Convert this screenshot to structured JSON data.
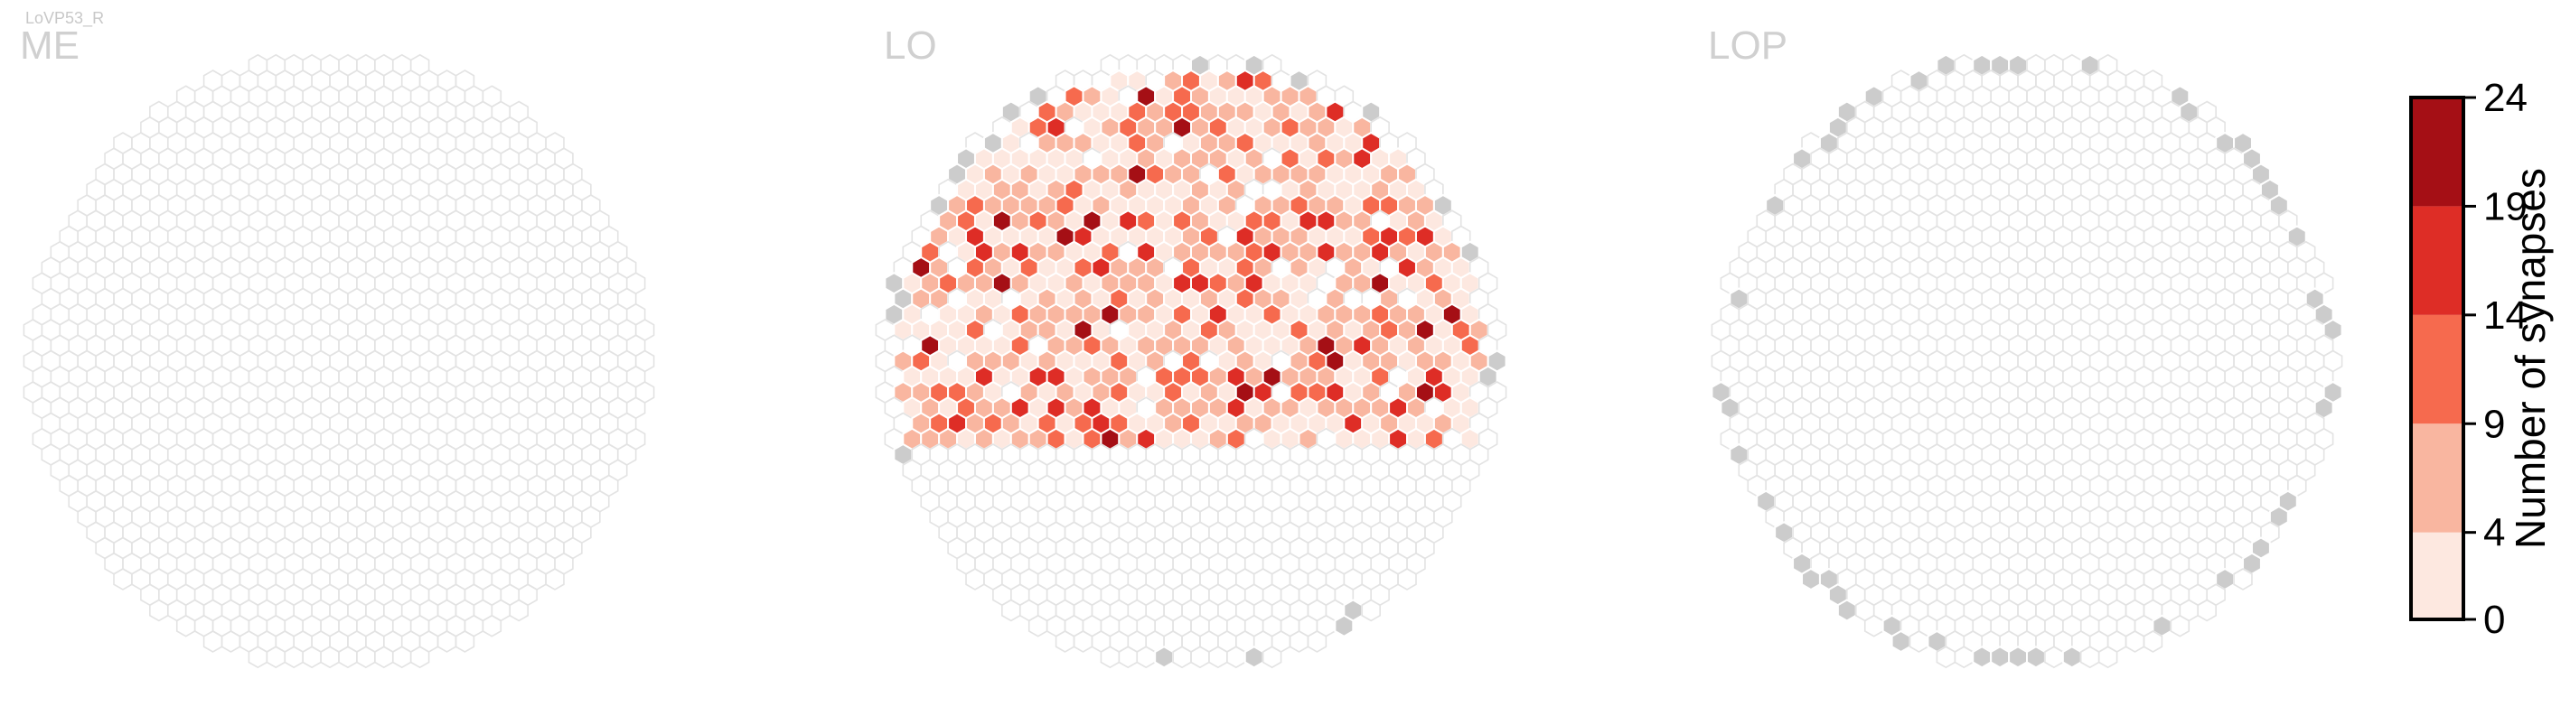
{
  "figure_title": "LoVP53_R",
  "chart_data": {
    "type": "heatmap",
    "layout": "hexagonal columns",
    "panels": [
      {
        "name": "ME",
        "cells_with_synapses": 0
      },
      {
        "name": "LO"
      },
      {
        "name": "LOP",
        "cells_with_synapses": 0
      }
    ],
    "colorbar": {
      "label": "Number of synapses",
      "ticks": [
        0,
        4,
        9,
        14,
        19,
        24
      ],
      "range": [
        0,
        24
      ],
      "bins": [
        {
          "range": [
            0,
            4
          ],
          "color": "#fde8e0"
        },
        {
          "range": [
            4,
            9
          ],
          "color": "#f9b6a0"
        },
        {
          "range": [
            9,
            14
          ],
          "color": "#f66a4e"
        },
        {
          "range": [
            14,
            19
          ],
          "color": "#de2d26"
        },
        {
          "range": [
            19,
            24
          ],
          "color": "#a50f15"
        }
      ]
    },
    "colors": {
      "empty_outline": "#e3e3e3",
      "outside_region": "#cccccc",
      "cell_border": "#ffffff"
    },
    "lo_value_distribution": {
      "0-4": 0.4,
      "4-9": 0.35,
      "9-14": 0.14,
      "14-19": 0.08,
      "19-24": 0.03
    }
  }
}
